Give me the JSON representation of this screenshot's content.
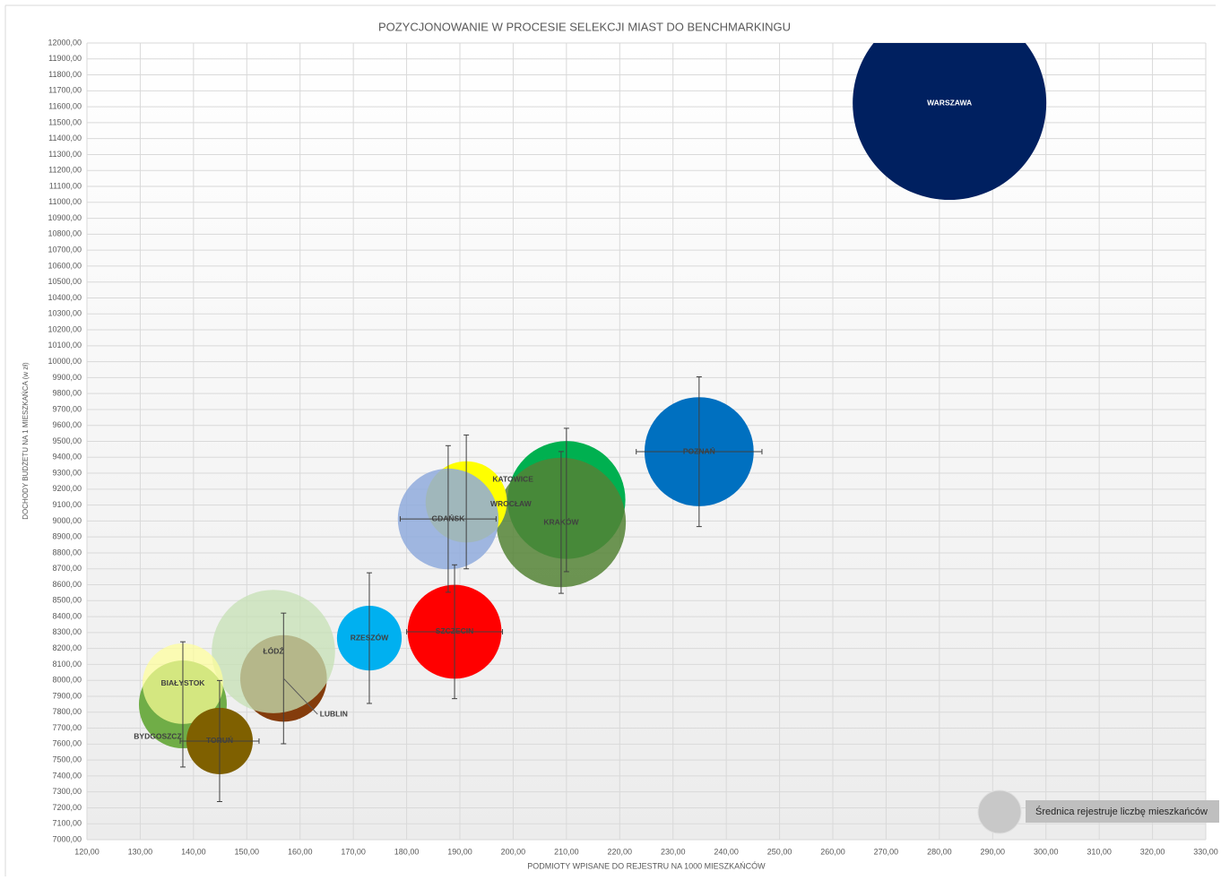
{
  "chart_data": {
    "type": "bubble",
    "title": "POZYCJONOWANIE  W PROCESIE  SELEKCJI  MIAST DO BENCHMARKINGU",
    "xlabel": "PODMIOTY WPISANE DO REJESTRU NA 1000 MIESZKAŃCÓW",
    "ylabel": "DOCHODY BUDŻETU NA 1 MIESZKAŃCA (w zł)",
    "legend_note": "Średnica rejestruje liczbę mieszkańców",
    "grid": true,
    "labels": [
      "WARSZAWA",
      "POZNAŃ",
      "WROCŁAW",
      "KRAKÓW",
      "KATOWICE",
      "GDAŃSK",
      "SZCZECIN",
      "RZESZÓW",
      "LUBLIN",
      "ŁÓDŹ",
      "BYDGOSZCZ",
      "BIAŁYSTOK",
      "TORUŃ"
    ],
    "x": [
      281.9,
      234.9,
      210,
      209,
      191.2,
      187.8,
      189,
      173,
      156.9,
      155,
      138,
      138,
      144.9
    ],
    "values": [
      11623,
      9435,
      9132,
      8991,
      9120,
      9013,
      8305,
      8265,
      8012,
      8181,
      7849,
      7979,
      7619
    ],
    "sizes": [
      1700,
      540,
      630,
      760,
      300,
      460,
      400,
      190,
      340,
      690,
      350,
      295,
      200
    ],
    "yerr": [
      null,
      470,
      450,
      445,
      420,
      460,
      420,
      410,
      410,
      null,
      393,
      null,
      380
    ],
    "xerr": [
      null,
      11.8,
      null,
      null,
      null,
      9,
      9,
      null,
      null,
      null,
      null,
      null,
      7.4
    ],
    "colors": [
      "#002060",
      "#0070c0",
      "#00b050",
      "#548235",
      "#ffff00",
      "#8faadc",
      "#ff0000",
      "#00b0f0",
      "#843c0c",
      "#c5e0b4",
      "#70ad47",
      "#ffff99",
      "#7f6000"
    ],
    "opacity": [
      1,
      1,
      1,
      0.85,
      1,
      0.85,
      1,
      1,
      1,
      0.75,
      1,
      0.7,
      1
    ],
    "xlim": [
      120,
      330
    ],
    "ylim": [
      7000,
      12000
    ],
    "xticks": [
      {
        "value": 120,
        "label": "120,00"
      },
      {
        "value": 130,
        "label": "130,00"
      },
      {
        "value": 140,
        "label": "140,00"
      },
      {
        "value": 150,
        "label": "150,00"
      },
      {
        "value": 160,
        "label": "160,00"
      },
      {
        "value": 170,
        "label": "170,00"
      },
      {
        "value": 180,
        "label": "180,00"
      },
      {
        "value": 190,
        "label": "190,00"
      },
      {
        "value": 200,
        "label": "200,00"
      },
      {
        "value": 210,
        "label": "210,00"
      },
      {
        "value": 220,
        "label": "220,00"
      },
      {
        "value": 230,
        "label": "230,00"
      },
      {
        "value": 240,
        "label": "240,00"
      },
      {
        "value": 250,
        "label": "250,00"
      },
      {
        "value": 260,
        "label": "260,00"
      },
      {
        "value": 270,
        "label": "270,00"
      },
      {
        "value": 280,
        "label": "280,00"
      },
      {
        "value": 290,
        "label": "290,00"
      },
      {
        "value": 300,
        "label": "300,00"
      },
      {
        "value": 310,
        "label": "310,00"
      },
      {
        "value": 320,
        "label": "320,00"
      },
      {
        "value": 330,
        "label": "330,00"
      }
    ],
    "yticks": [
      {
        "value": 7000,
        "label": "7000,00"
      },
      {
        "value": 7100,
        "label": "7100,00"
      },
      {
        "value": 7200,
        "label": "7200,00"
      },
      {
        "value": 7300,
        "label": "7300,00"
      },
      {
        "value": 7400,
        "label": "7400,00"
      },
      {
        "value": 7500,
        "label": "7500,00"
      },
      {
        "value": 7600,
        "label": "7600,00"
      },
      {
        "value": 7700,
        "label": "7700,00"
      },
      {
        "value": 7800,
        "label": "7800,00"
      },
      {
        "value": 7900,
        "label": "7900,00"
      },
      {
        "value": 8000,
        "label": "8000,00"
      },
      {
        "value": 8100,
        "label": "8100,00"
      },
      {
        "value": 8200,
        "label": "8200,00"
      },
      {
        "value": 8300,
        "label": "8300,00"
      },
      {
        "value": 8400,
        "label": "8400,00"
      },
      {
        "value": 8500,
        "label": "8500,00"
      },
      {
        "value": 8600,
        "label": "8600,00"
      },
      {
        "value": 8700,
        "label": "8700,00"
      },
      {
        "value": 8800,
        "label": "8800,00"
      },
      {
        "value": 8900,
        "label": "8900,00"
      },
      {
        "value": 9000,
        "label": "9000,00"
      },
      {
        "value": 9100,
        "label": "9100,00"
      },
      {
        "value": 9200,
        "label": "9200,00"
      },
      {
        "value": 9300,
        "label": "9300,00"
      },
      {
        "value": 9400,
        "label": "9400,00"
      },
      {
        "value": 9500,
        "label": "9500,00"
      },
      {
        "value": 9600,
        "label": "9600,00"
      },
      {
        "value": 9700,
        "label": "9700,00"
      },
      {
        "value": 9800,
        "label": "9800,00"
      },
      {
        "value": 9900,
        "label": "9900,00"
      },
      {
        "value": 10000,
        "label": "10000,00"
      },
      {
        "value": 10100,
        "label": "10100,00"
      },
      {
        "value": 10200,
        "label": "10200,00"
      },
      {
        "value": 10300,
        "label": "10300,00"
      },
      {
        "value": 10400,
        "label": "10400,00"
      },
      {
        "value": 10500,
        "label": "10500,00"
      },
      {
        "value": 10600,
        "label": "10600,00"
      },
      {
        "value": 10700,
        "label": "10700,00"
      },
      {
        "value": 10800,
        "label": "10800,00"
      },
      {
        "value": 10900,
        "label": "10900,00"
      },
      {
        "value": 11000,
        "label": "11000,00"
      },
      {
        "value": 11100,
        "label": "11100,00"
      },
      {
        "value": 11200,
        "label": "11200,00"
      },
      {
        "value": 11300,
        "label": "11300,00"
      },
      {
        "value": 11400,
        "label": "11400,00"
      },
      {
        "value": 11500,
        "label": "11500,00"
      },
      {
        "value": 11600,
        "label": "11600,00"
      },
      {
        "value": 11700,
        "label": "11700,00"
      },
      {
        "value": 11800,
        "label": "11800,00"
      },
      {
        "value": 11900,
        "label": "11900,00"
      },
      {
        "value": 12000,
        "label": "12000,00"
      }
    ]
  }
}
